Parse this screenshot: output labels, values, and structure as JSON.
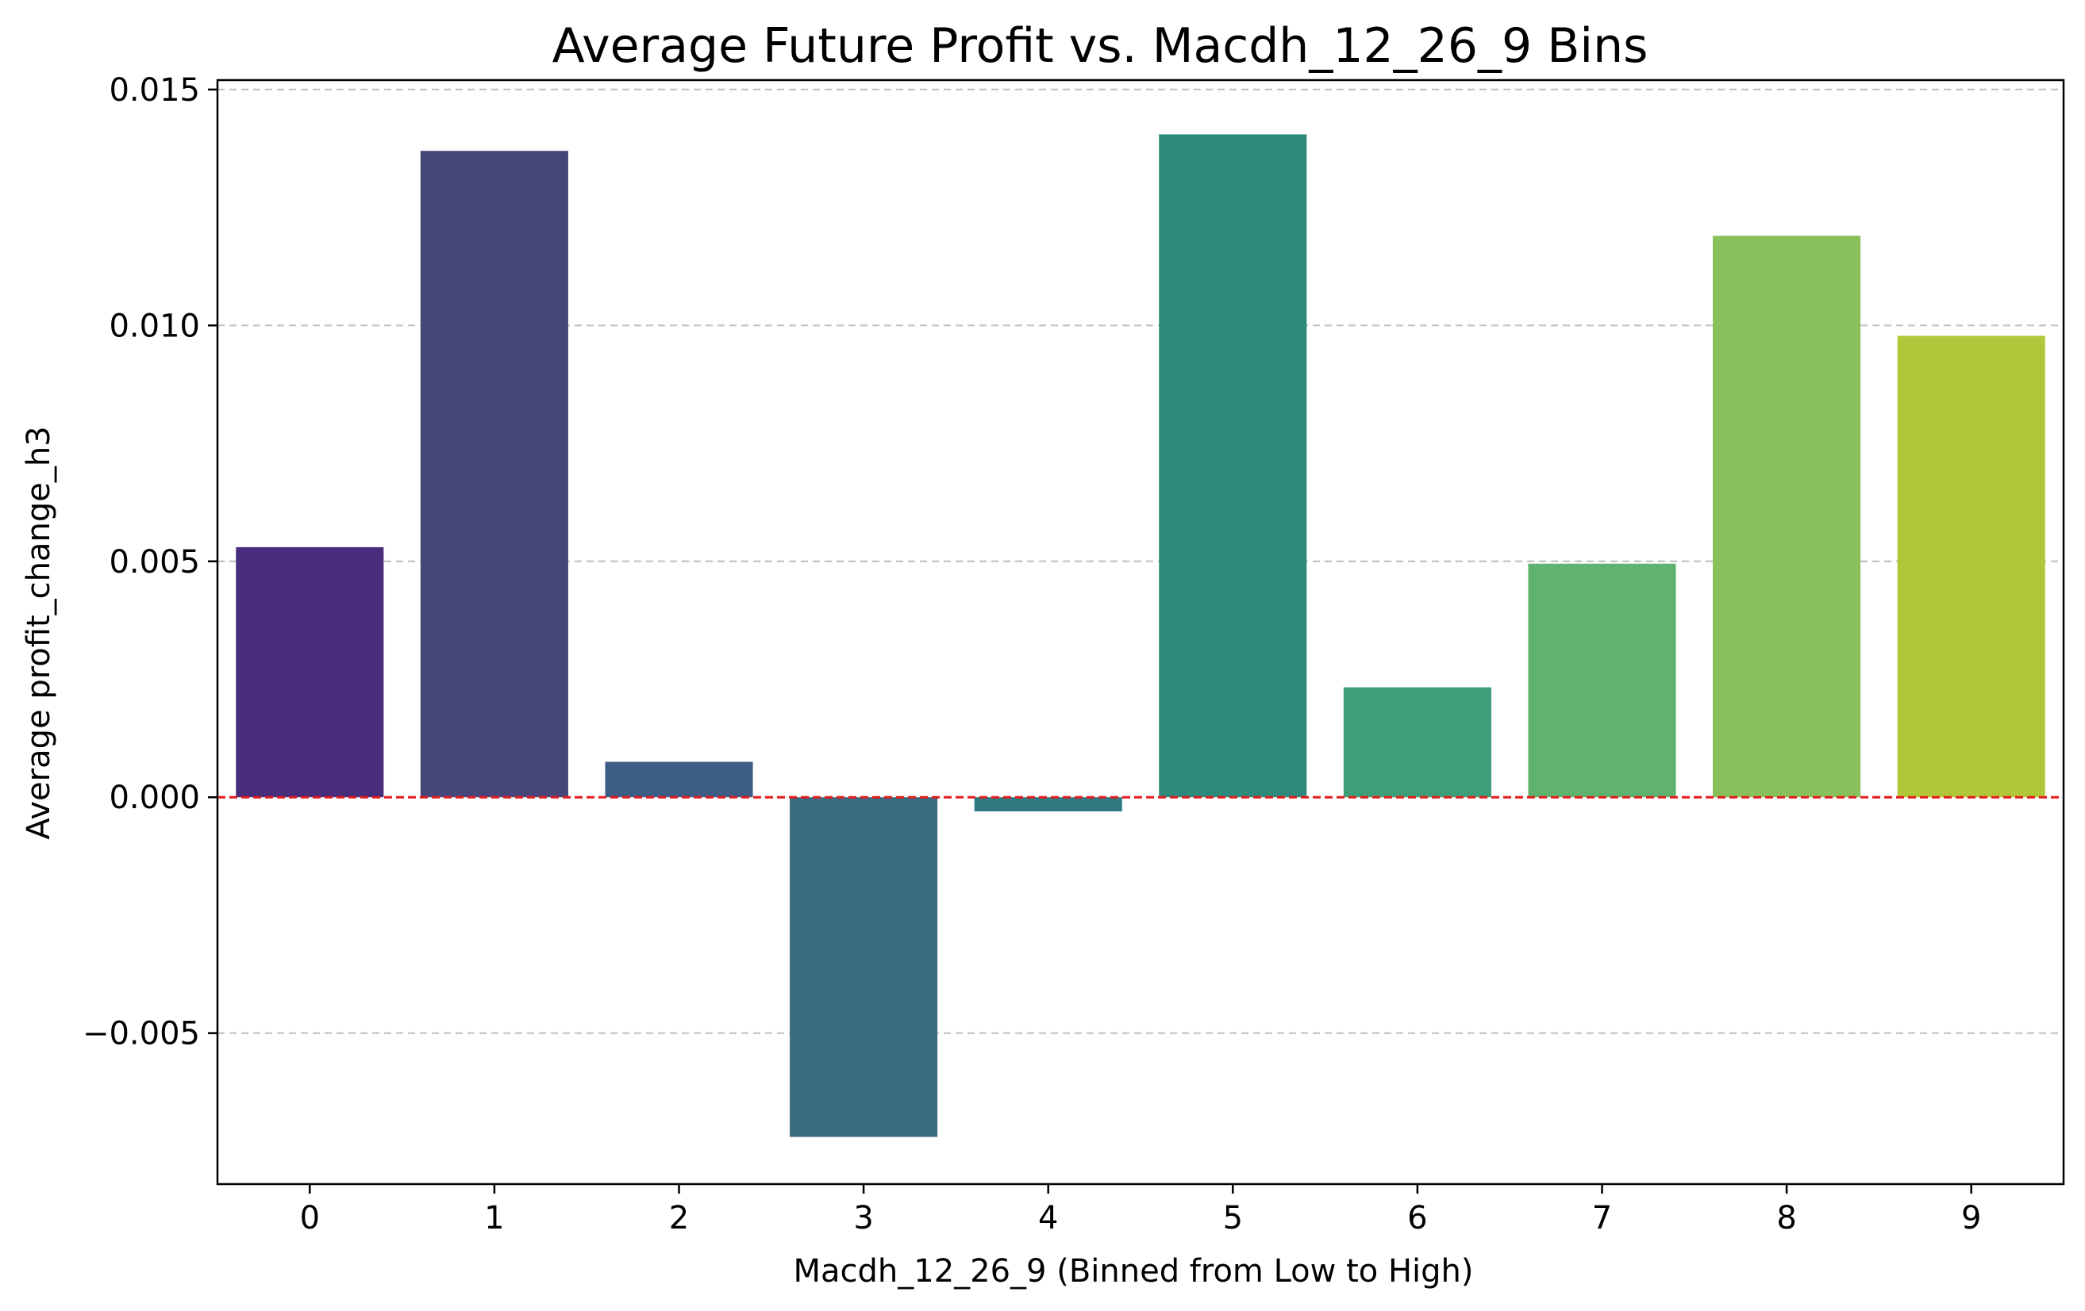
{
  "chart_data": {
    "type": "bar",
    "title": "Average Future Profit vs. Macdh_12_26_9 Bins",
    "xlabel": "Macdh_12_26_9 (Binned from Low to High)",
    "ylabel": "Average profit_change_h3",
    "categories": [
      "0",
      "1",
      "2",
      "3",
      "4",
      "5",
      "6",
      "7",
      "8",
      "9"
    ],
    "values": [
      0.0053,
      0.0137,
      0.00075,
      -0.0072,
      -0.0003,
      0.01405,
      0.00233,
      0.00495,
      0.0119,
      0.00978
    ],
    "ylim": [
      -0.0082,
      0.0152
    ],
    "yticks": [
      -0.005,
      0.0,
      0.005,
      0.01,
      0.015
    ],
    "ytick_labels": [
      "−0.005",
      "0.000",
      "0.005",
      "0.010",
      "0.015"
    ],
    "grid": "y-axis dashed",
    "reference_line": {
      "y": 0,
      "color": "#e41a1c",
      "style": "dashed"
    },
    "bar_colors": [
      "#472d7b",
      "#46467a",
      "#3e5d86",
      "#3a6c80",
      "#2f7a80",
      "#2e8b7b",
      "#3c9f78",
      "#5fb36f",
      "#88c05b",
      "#b2c63a"
    ]
  }
}
